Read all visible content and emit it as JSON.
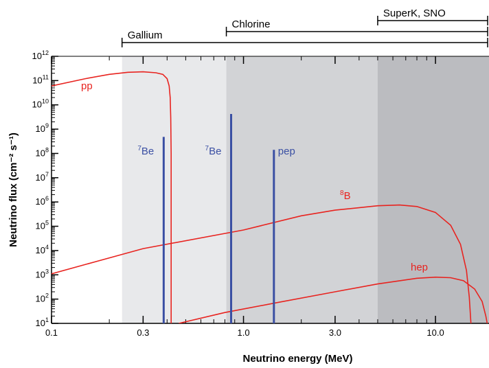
{
  "chart_data": {
    "type": "line",
    "xlabel": "Neutrino energy (MeV)",
    "ylabel": "Neutrino flux (cm⁻² s⁻¹)",
    "x_scale": "log",
    "y_scale": "log",
    "xlim": [
      0.1,
      19
    ],
    "ylim": [
      10,
      1000000000000.0
    ],
    "grid": false,
    "x_ticks": [
      {
        "value": 0.1,
        "label": "0.1"
      },
      {
        "value": 0.3,
        "label": "0.3"
      },
      {
        "value": 1.0,
        "label": "1.0"
      },
      {
        "value": 3.0,
        "label": "3.0"
      },
      {
        "value": 10.0,
        "label": "10.0"
      }
    ],
    "y_ticks": [
      {
        "value": 10,
        "base": "10",
        "exp": "1"
      },
      {
        "value": 100,
        "base": "10",
        "exp": "2"
      },
      {
        "value": 1000,
        "base": "10",
        "exp": "3"
      },
      {
        "value": 10000,
        "base": "10",
        "exp": "4"
      },
      {
        "value": 100000,
        "base": "10",
        "exp": "5"
      },
      {
        "value": 1000000,
        "base": "10",
        "exp": "6"
      },
      {
        "value": 10000000,
        "base": "10",
        "exp": "7"
      },
      {
        "value": 100000000,
        "base": "10",
        "exp": "8"
      },
      {
        "value": 1000000000,
        "base": "10",
        "exp": "9"
      },
      {
        "value": 10000000000,
        "base": "10",
        "exp": "10"
      },
      {
        "value": 100000000000,
        "base": "10",
        "exp": "11"
      },
      {
        "value": 1000000000000,
        "base": "10",
        "exp": "12"
      }
    ],
    "thresholds": [
      {
        "name": "Gallium",
        "threshold_mev": 0.233,
        "shade": "#e8e9eb"
      },
      {
        "name": "Chlorine",
        "threshold_mev": 0.814,
        "shade": "#d2d3d6"
      },
      {
        "name": "SuperK, SNO",
        "threshold_mev": 5.0,
        "shade": "#bbbcc0"
      }
    ],
    "series": [
      {
        "name": "pp",
        "color": "#e8231f",
        "x": [
          0.1,
          0.15,
          0.2,
          0.25,
          0.3,
          0.35,
          0.38,
          0.4,
          0.41,
          0.415,
          0.418,
          0.42,
          0.42
        ],
        "y": [
          60000000000.0,
          120000000000.0,
          180000000000.0,
          220000000000.0,
          230000000000.0,
          210000000000.0,
          180000000000.0,
          120000000000.0,
          60000000000.0,
          20000000000.0,
          3000000000.0,
          100000000.0,
          10
        ]
      },
      {
        "name": "8B",
        "label_base": "B",
        "label_sup": "8",
        "color": "#e8231f",
        "x": [
          0.1,
          0.3,
          1.0,
          2.0,
          3.0,
          5.0,
          6.5,
          8.0,
          10.0,
          12.0,
          13.5,
          14.5,
          15.0,
          15.3
        ],
        "y": [
          1100.0,
          12000.0,
          70000.0,
          270000.0,
          460000.0,
          700000.0,
          750000.0,
          650000.0,
          370000.0,
          110000.0,
          18000.0,
          1500.0,
          120.0,
          10
        ]
      },
      {
        "name": "hep",
        "color": "#e8231f",
        "x": [
          0.46,
          0.8,
          1.5,
          3.0,
          5.0,
          8.0,
          10.0,
          12.0,
          14.0,
          16.0,
          17.5,
          18.3,
          18.6
        ],
        "y": [
          10,
          28,
          72,
          200,
          420,
          720,
          800,
          760,
          570,
          260,
          80,
          20,
          10
        ]
      }
    ],
    "lines": [
      {
        "name": "7Be",
        "label_base": "Be",
        "label_sup": "7",
        "color": "#3a4fa3",
        "x": 0.384,
        "y": 480000000.0
      },
      {
        "name": "7Be",
        "label_base": "Be",
        "label_sup": "7",
        "color": "#3a4fa3",
        "x": 0.862,
        "y": 4200000000.0
      },
      {
        "name": "pep",
        "label_base": "pep",
        "label_sup": "",
        "color": "#3a4fa3",
        "x": 1.44,
        "y": 140000000.0
      }
    ]
  }
}
